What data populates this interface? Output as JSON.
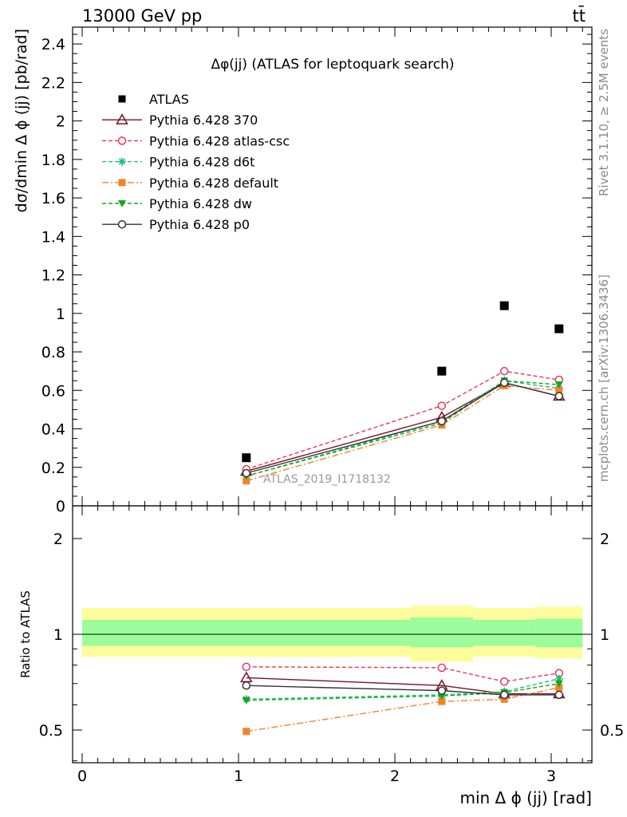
{
  "header": {
    "energy_label": "13000 GeV pp",
    "process_label": "tt̄",
    "plot_title": "Δφ(jj) (ATLAS for leptoquark search)",
    "rivet_label": "Rivet 3.1.10, ≥ 2.5M events",
    "source_label": "mcplots.cern.ch [arXiv:1306.3436]",
    "analysis_label": "ATLAS_2019_I1718132"
  },
  "chart_data": [
    {
      "type": "scatter",
      "panel": "main",
      "ylabel": "dσ/dmin Δ ϕ (jj) [pb/rad]",
      "ylim": [
        0,
        2.5
      ],
      "yticks": [
        "0",
        "0.2",
        "0.4",
        "0.6",
        "0.8",
        "1",
        "1.2",
        "1.4",
        "1.6",
        "1.8",
        "2",
        "2.2",
        "2.4"
      ],
      "x": [
        1.05,
        2.3,
        2.7,
        3.05
      ],
      "series": [
        {
          "name": "ATLAS",
          "values": [
            0.25,
            0.7,
            1.04,
            0.92
          ],
          "color": "#000000",
          "marker": "square-filled",
          "line": "none"
        },
        {
          "name": "Pythia 6.428 370",
          "values": [
            0.18,
            0.46,
            0.64,
            0.57
          ],
          "color": "#7b1020",
          "marker": "triangle-open",
          "line": "solid"
        },
        {
          "name": "Pythia 6.428 atlas-csc",
          "values": [
            0.19,
            0.52,
            0.7,
            0.655
          ],
          "color": "#e8365b",
          "marker": "circle-open",
          "line": "dashed"
        },
        {
          "name": "Pythia 6.428 d6t",
          "values": [
            0.155,
            0.44,
            0.65,
            0.61
          ],
          "color": "#1cc27a",
          "marker": "star",
          "line": "dashed"
        },
        {
          "name": "Pythia 6.428 default",
          "values": [
            0.13,
            0.42,
            0.625,
            0.6
          ],
          "color": "#f5822a",
          "marker": "square-filled",
          "line": "dashdot"
        },
        {
          "name": "Pythia 6.428 dw",
          "values": [
            0.155,
            0.43,
            0.65,
            0.63
          ],
          "color": "#14a81a",
          "marker": "triangle-down-filled",
          "line": "dashed"
        },
        {
          "name": "Pythia 6.428 p0",
          "values": [
            0.17,
            0.44,
            0.64,
            0.57
          ],
          "color": "#333333",
          "marker": "circle-open",
          "line": "solid"
        }
      ]
    },
    {
      "type": "line",
      "panel": "ratio",
      "xlabel": "min Δ ϕ (jj) [rad]",
      "ylabel": "Ratio to ATLAS",
      "xlim": [
        -0.1,
        3.25
      ],
      "ylim": [
        0.35,
        2.3
      ],
      "xticks": [
        "0",
        "1",
        "2",
        "3"
      ],
      "yticks": [
        "0.5",
        "1",
        "2"
      ],
      "bins": [
        [
          0,
          2.1
        ],
        [
          2.1,
          2.5
        ],
        [
          2.5,
          2.9
        ],
        [
          2.9,
          3.2
        ]
      ],
      "band_stat_sys": [
        [
          0.85,
          1.21
        ],
        [
          0.82,
          1.23
        ],
        [
          0.85,
          1.21
        ],
        [
          0.84,
          1.22
        ]
      ],
      "band_stat": [
        [
          0.92,
          1.11
        ],
        [
          0.91,
          1.13
        ],
        [
          0.92,
          1.11
        ],
        [
          0.91,
          1.12
        ]
      ],
      "x": [
        1.05,
        2.3,
        2.7,
        3.05
      ],
      "series": [
        {
          "name": "Pythia 6.428 370",
          "values": [
            0.73,
            0.69,
            0.65,
            0.65
          ],
          "color": "#7b1020",
          "marker": "triangle-open",
          "line": "solid"
        },
        {
          "name": "Pythia 6.428 atlas-csc",
          "values": [
            0.79,
            0.785,
            0.71,
            0.755
          ],
          "color": "#e8365b",
          "marker": "circle-open",
          "line": "dashed"
        },
        {
          "name": "Pythia 6.428 d6t",
          "values": [
            0.625,
            0.645,
            0.66,
            0.725
          ],
          "color": "#1cc27a",
          "marker": "star",
          "line": "dashed"
        },
        {
          "name": "Pythia 6.428 default",
          "values": [
            0.495,
            0.615,
            0.625,
            0.68
          ],
          "color": "#f5822a",
          "marker": "square-filled",
          "line": "dashdot"
        },
        {
          "name": "Pythia 6.428 dw",
          "values": [
            0.62,
            0.64,
            0.655,
            0.7
          ],
          "color": "#14a81a",
          "marker": "triangle-down-filled",
          "line": "dashed"
        },
        {
          "name": "Pythia 6.428 p0",
          "values": [
            0.69,
            0.665,
            0.645,
            0.645
          ],
          "color": "#333333",
          "marker": "circle-open",
          "line": "solid"
        }
      ]
    }
  ]
}
